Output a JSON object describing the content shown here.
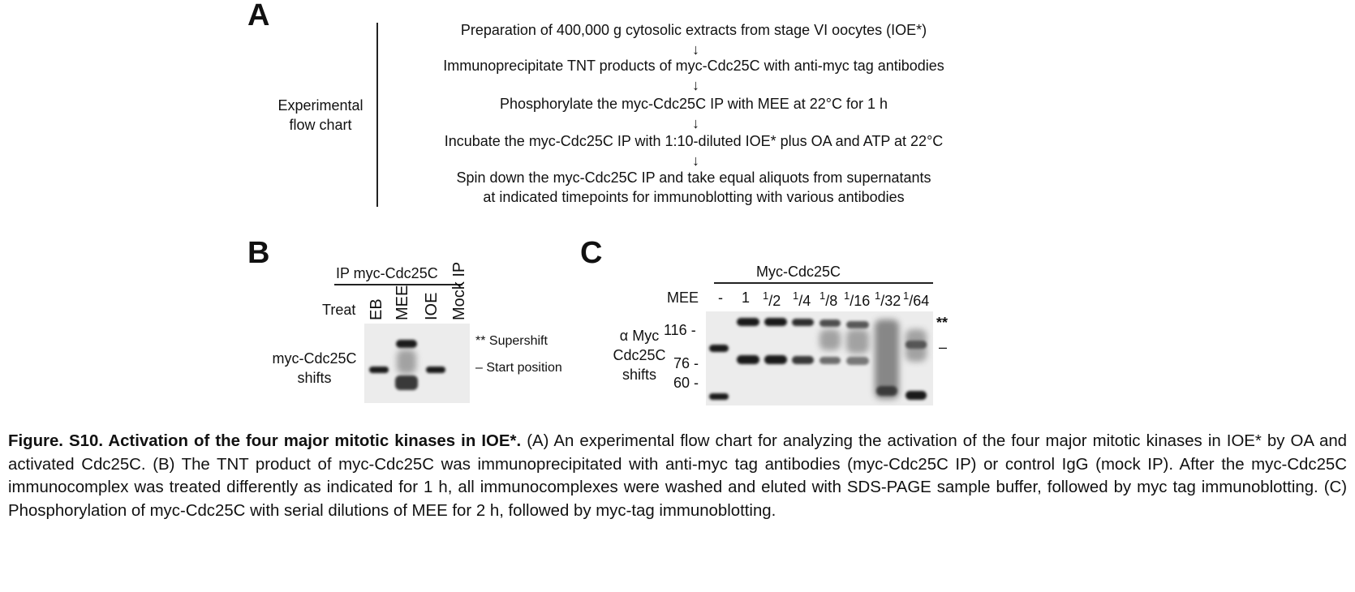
{
  "panel_a": {
    "letter": "A",
    "side_label_line1": "Experimental",
    "side_label_line2": "flow chart",
    "steps": [
      "Preparation of 400,000 g cytosolic extracts from stage VI oocytes (IOE*)",
      "Immunoprecipitate TNT products of myc-Cdc25C with anti-myc tag antibodies",
      "Phosphorylate the myc-Cdc25C IP with MEE at 22°C for 1 h",
      "Incubate the myc-Cdc25C IP with 1:10-diluted IOE* plus OA and ATP at 22°C",
      "Spin down the myc-Cdc25C IP and take equal aliquots from supernatants",
      "at indicated timepoints for immunoblotting with various antibodies"
    ],
    "arrow_glyph": "↓"
  },
  "panel_b": {
    "letter": "B",
    "ip_header": "IP myc-Cdc25C",
    "treat_label": "Treat",
    "lanes": [
      "EB",
      "MEE",
      "IOE",
      "Mock IP"
    ],
    "blot_label_line1": "myc-Cdc25C",
    "blot_label_line2": "shifts",
    "markers": [
      {
        "symbol": "**",
        "text": "Supershift"
      },
      {
        "symbol": "–",
        "text": "Start position"
      }
    ]
  },
  "panel_c": {
    "letter": "C",
    "header": "Myc-Cdc25C",
    "row_label": "MEE",
    "lanes": [
      "-",
      "1",
      "1/2",
      "1/4",
      "1/8",
      "1/16",
      "1/32",
      "1/64"
    ],
    "blot_label_line1": "α Myc",
    "blot_label_line2": "Cdc25C",
    "blot_label_line3": "shifts",
    "mw_markers": [
      "116 -",
      "76 -",
      "60 -"
    ],
    "right_markers": [
      "**",
      "–"
    ]
  },
  "caption": {
    "bold_title": "Figure. S10. Activation of the four major mitotic kinases in IOE*.",
    "body": " (A) An experimental flow chart for analyzing the activation of the four major mitotic kinases in IOE* by OA and activated Cdc25C. (B) The TNT product of myc-Cdc25C was immunoprecipitated with anti-myc tag antibodies (myc-Cdc25C IP) or control IgG (mock IP). After the myc-Cdc25C immunocomplex was treated differently as indicated for 1 h, all immunocomplexes were washed and eluted with SDS-PAGE sample buffer, followed by myc tag immunoblotting. (C) Phosphorylation of myc-Cdc25C with serial dilutions of MEE for 2 h, followed by myc-tag immunoblotting."
  }
}
